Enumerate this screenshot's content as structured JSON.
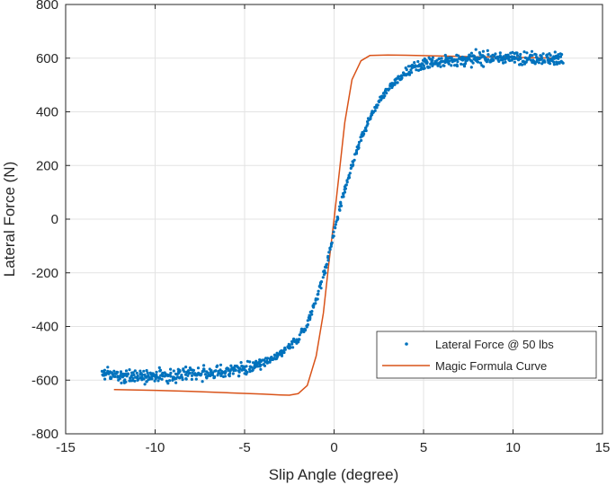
{
  "chart_data": {
    "type": "scatter",
    "xlabel": "Slip Angle (degree)",
    "ylabel": "Lateral Force (N)",
    "xlim": [
      -15,
      15
    ],
    "ylim": [
      -800,
      800
    ],
    "xticks": [
      -15,
      -10,
      -5,
      0,
      5,
      10,
      15
    ],
    "yticks": [
      -800,
      -600,
      -400,
      -200,
      0,
      200,
      400,
      600,
      800
    ],
    "grid": true,
    "legend_position": "lower-right",
    "series": [
      {
        "name": "Lateral Force @ 50 lbs",
        "kind": "scatter",
        "color": "#0072BD",
        "x_range": [
          -13,
          12.8
        ],
        "points": [
          [
            -13,
            -575
          ],
          [
            -12,
            -585
          ],
          [
            -11,
            -588
          ],
          [
            -10,
            -582
          ],
          [
            -9,
            -585
          ],
          [
            -8,
            -578
          ],
          [
            -7,
            -575
          ],
          [
            -6,
            -568
          ],
          [
            -5,
            -558
          ],
          [
            -4,
            -540
          ],
          [
            -3,
            -505
          ],
          [
            -2,
            -445
          ],
          [
            -1.5,
            -390
          ],
          [
            -1,
            -300
          ],
          [
            -0.5,
            -190
          ],
          [
            0,
            -50
          ],
          [
            0.5,
            90
          ],
          [
            1,
            200
          ],
          [
            1.5,
            300
          ],
          [
            2,
            375
          ],
          [
            2.5,
            440
          ],
          [
            3,
            485
          ],
          [
            4,
            545
          ],
          [
            5,
            578
          ],
          [
            6,
            590
          ],
          [
            7,
            595
          ],
          [
            8,
            598
          ],
          [
            9,
            600
          ],
          [
            10,
            600
          ],
          [
            11,
            600
          ],
          [
            12.8,
            600
          ]
        ]
      },
      {
        "name": "Magic Formula Curve",
        "kind": "line",
        "color": "#D95319",
        "points": [
          [
            -12.3,
            -635
          ],
          [
            -10,
            -638
          ],
          [
            -8,
            -642
          ],
          [
            -6,
            -647
          ],
          [
            -4,
            -652
          ],
          [
            -3,
            -655
          ],
          [
            -2.5,
            -656
          ],
          [
            -2,
            -650
          ],
          [
            -1.5,
            -620
          ],
          [
            -1,
            -510
          ],
          [
            -0.6,
            -350
          ],
          [
            -0.3,
            -170
          ],
          [
            0,
            0
          ],
          [
            0.3,
            180
          ],
          [
            0.6,
            360
          ],
          [
            1,
            520
          ],
          [
            1.5,
            590
          ],
          [
            2,
            610
          ],
          [
            3,
            612
          ],
          [
            4,
            611
          ],
          [
            6,
            608
          ],
          [
            8,
            605
          ],
          [
            10,
            603
          ],
          [
            12.5,
            600
          ]
        ]
      }
    ]
  }
}
